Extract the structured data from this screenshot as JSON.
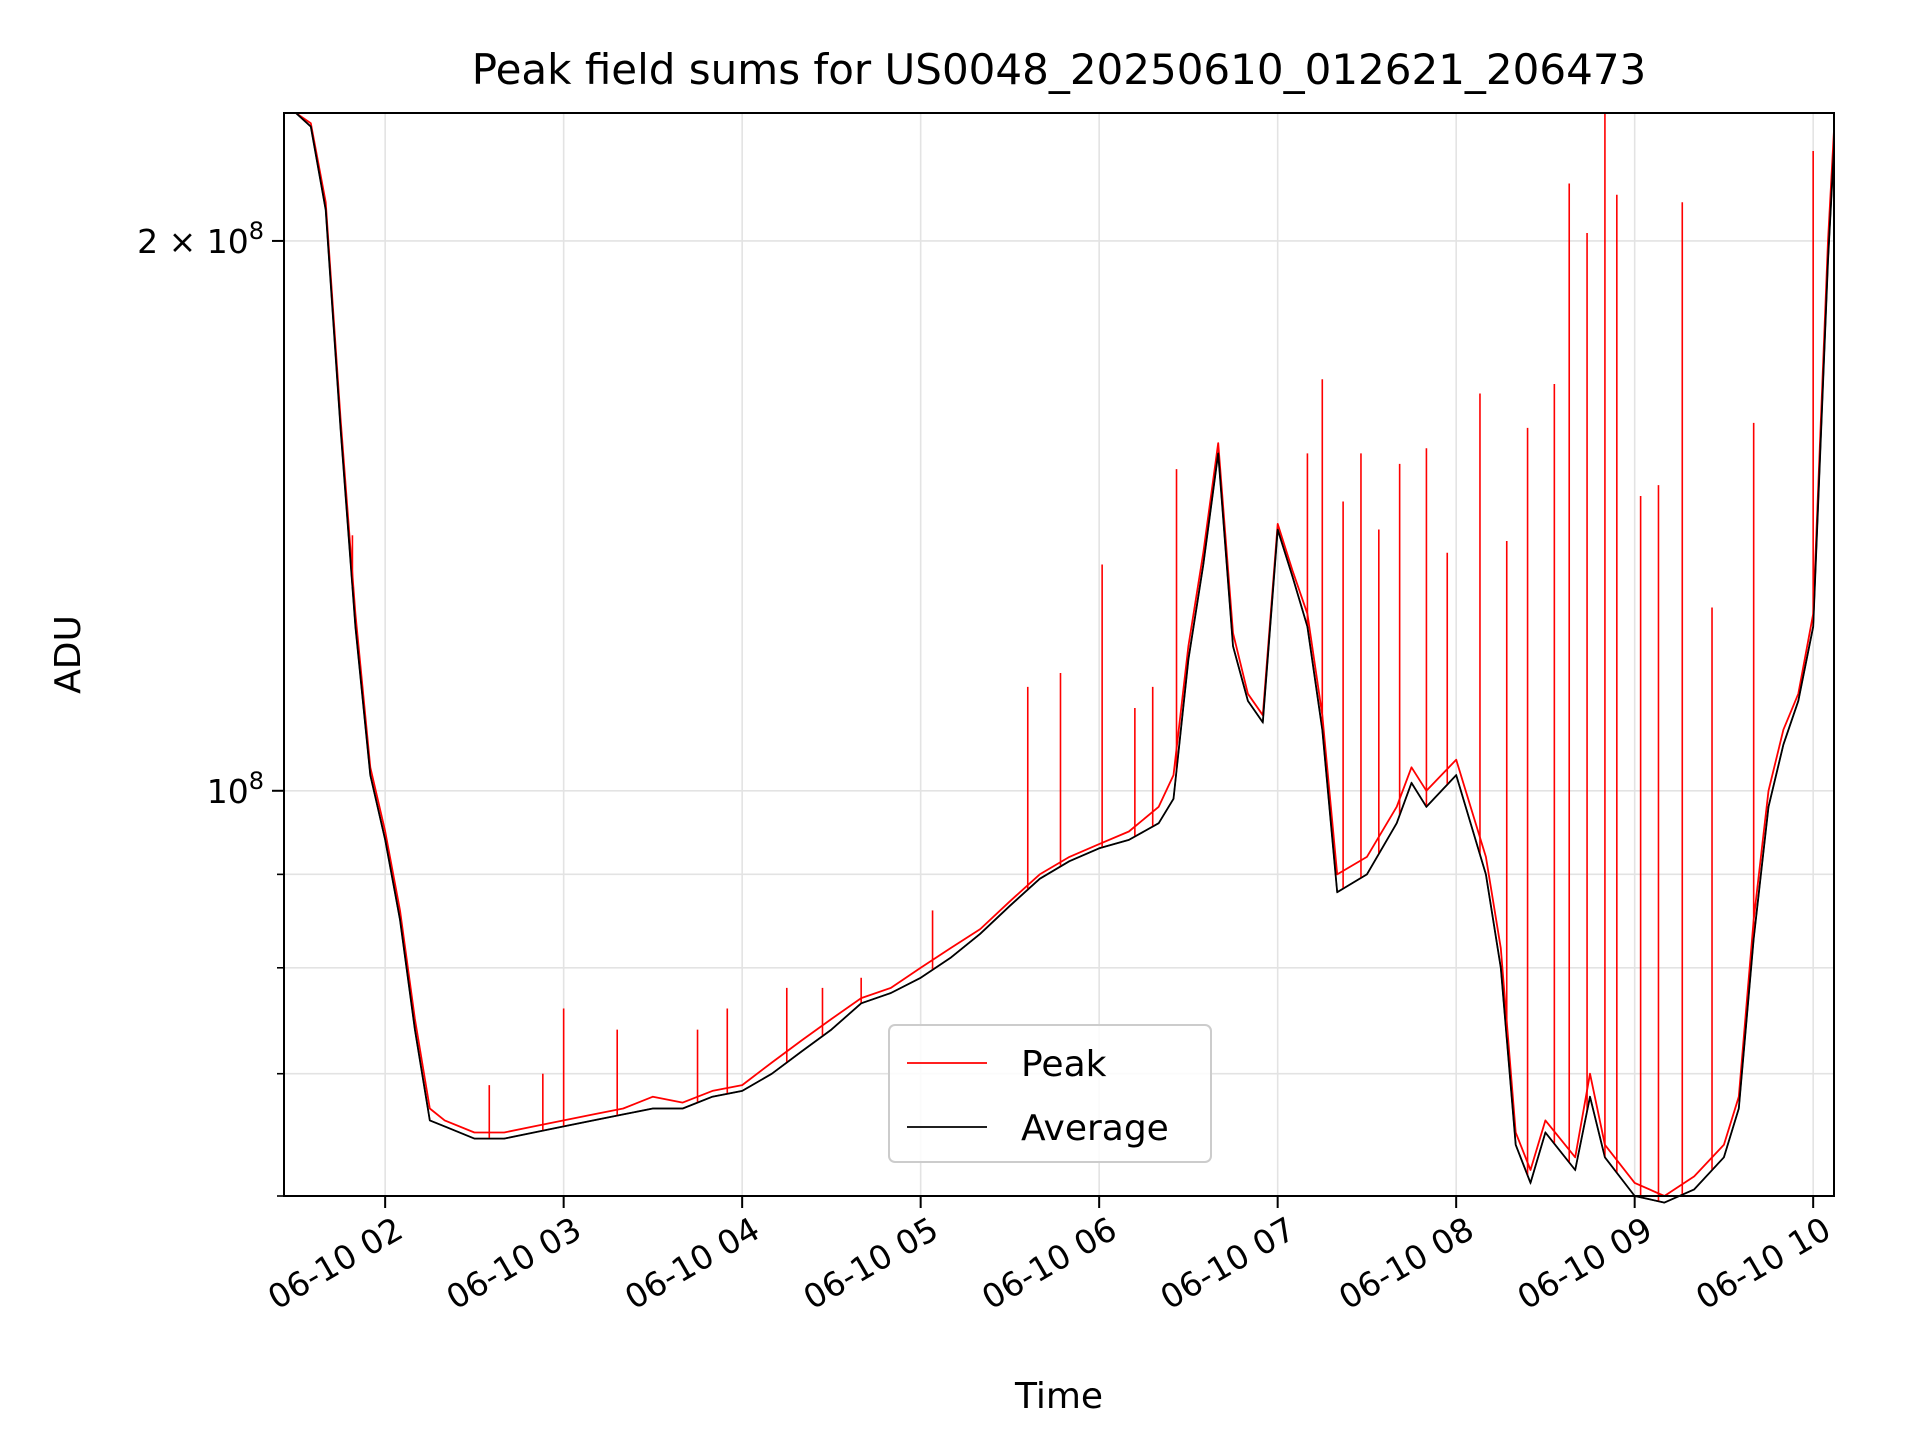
{
  "chart_data": {
    "type": "line",
    "title": "Peak field sums for US0048_20250610_012621_206473",
    "xlabel": "Time",
    "ylabel": "ADU",
    "y_scale": "log",
    "xlim": [
      "2025-06-10 01:26",
      "2025-06-10 10:07"
    ],
    "ylim": [
      60000000,
      235000000
    ],
    "grid": true,
    "legend_position": "lower-center",
    "x_ticks": [
      {
        "value": "2025-06-10 02:00",
        "label": "06-10 02"
      },
      {
        "value": "2025-06-10 03:00",
        "label": "06-10 03"
      },
      {
        "value": "2025-06-10 04:00",
        "label": "06-10 04"
      },
      {
        "value": "2025-06-10 05:00",
        "label": "06-10 05"
      },
      {
        "value": "2025-06-10 06:00",
        "label": "06-10 06"
      },
      {
        "value": "2025-06-10 07:00",
        "label": "06-10 07"
      },
      {
        "value": "2025-06-10 08:00",
        "label": "06-10 08"
      },
      {
        "value": "2025-06-10 09:00",
        "label": "06-10 09"
      },
      {
        "value": "2025-06-10 10:00",
        "label": "06-10 10"
      }
    ],
    "y_ticks": [
      {
        "value": 100000000,
        "label": "10",
        "exp": "8"
      },
      {
        "value": 200000000,
        "label": "2 × 10",
        "exp": "8"
      }
    ],
    "y_minor_ticks": [
      60000000,
      70000000,
      80000000,
      90000000
    ],
    "series": [
      {
        "name": "Peak",
        "color": "#ff0000",
        "x": [
          "2025-06-10 01:26",
          "2025-06-10 01:30",
          "2025-06-10 01:35",
          "2025-06-10 01:40",
          "2025-06-10 01:45",
          "2025-06-10 01:50",
          "2025-06-10 01:55",
          "2025-06-10 02:00",
          "2025-06-10 02:05",
          "2025-06-10 02:10",
          "2025-06-10 02:15",
          "2025-06-10 02:20",
          "2025-06-10 02:30",
          "2025-06-10 02:40",
          "2025-06-10 02:50",
          "2025-06-10 03:00",
          "2025-06-10 03:10",
          "2025-06-10 03:20",
          "2025-06-10 03:30",
          "2025-06-10 03:40",
          "2025-06-10 03:50",
          "2025-06-10 04:00",
          "2025-06-10 04:10",
          "2025-06-10 04:20",
          "2025-06-10 04:30",
          "2025-06-10 04:40",
          "2025-06-10 04:50",
          "2025-06-10 05:00",
          "2025-06-10 05:10",
          "2025-06-10 05:20",
          "2025-06-10 05:30",
          "2025-06-10 05:40",
          "2025-06-10 05:50",
          "2025-06-10 06:00",
          "2025-06-10 06:10",
          "2025-06-10 06:20",
          "2025-06-10 06:25",
          "2025-06-10 06:30",
          "2025-06-10 06:35",
          "2025-06-10 06:40",
          "2025-06-10 06:45",
          "2025-06-10 06:50",
          "2025-06-10 06:55",
          "2025-06-10 07:00",
          "2025-06-10 07:05",
          "2025-06-10 07:10",
          "2025-06-10 07:15",
          "2025-06-10 07:20",
          "2025-06-10 07:30",
          "2025-06-10 07:40",
          "2025-06-10 07:45",
          "2025-06-10 07:50",
          "2025-06-10 08:00",
          "2025-06-10 08:10",
          "2025-06-10 08:15",
          "2025-06-10 08:20",
          "2025-06-10 08:25",
          "2025-06-10 08:30",
          "2025-06-10 08:40",
          "2025-06-10 08:45",
          "2025-06-10 08:50",
          "2025-06-10 09:00",
          "2025-06-10 09:10",
          "2025-06-10 09:20",
          "2025-06-10 09:30",
          "2025-06-10 09:35",
          "2025-06-10 09:40",
          "2025-06-10 09:45",
          "2025-06-10 09:50",
          "2025-06-10 09:55",
          "2025-06-10 10:00",
          "2025-06-10 10:05",
          "2025-06-10 10:07"
        ],
        "y": [
          235000000,
          235000000,
          232000000,
          210000000,
          160000000,
          125000000,
          103000000,
          95000000,
          86000000,
          75000000,
          67000000,
          66000000,
          65000000,
          65000000,
          65500000,
          66000000,
          66500000,
          67000000,
          68000000,
          67500000,
          68500000,
          69000000,
          71000000,
          73000000,
          75000000,
          77000000,
          78000000,
          80000000,
          82000000,
          84000000,
          87000000,
          90000000,
          92000000,
          93500000,
          95000000,
          98000000,
          102000000,
          120000000,
          135000000,
          155000000,
          122000000,
          113000000,
          110000000,
          140000000,
          132000000,
          125000000,
          110000000,
          90000000,
          92000000,
          98000000,
          103000000,
          100000000,
          104000000,
          92000000,
          82000000,
          65000000,
          62000000,
          66000000,
          63000000,
          70000000,
          64000000,
          61000000,
          60000000,
          61500000,
          64000000,
          68000000,
          85000000,
          100000000,
          108000000,
          113000000,
          125000000,
          200000000,
          230000000
        ]
      },
      {
        "name": "Average",
        "color": "#000000",
        "x": [
          "2025-06-10 01:26",
          "2025-06-10 01:30",
          "2025-06-10 01:35",
          "2025-06-10 01:40",
          "2025-06-10 01:45",
          "2025-06-10 01:50",
          "2025-06-10 01:55",
          "2025-06-10 02:00",
          "2025-06-10 02:05",
          "2025-06-10 02:10",
          "2025-06-10 02:15",
          "2025-06-10 02:20",
          "2025-06-10 02:30",
          "2025-06-10 02:40",
          "2025-06-10 02:50",
          "2025-06-10 03:00",
          "2025-06-10 03:10",
          "2025-06-10 03:20",
          "2025-06-10 03:30",
          "2025-06-10 03:40",
          "2025-06-10 03:50",
          "2025-06-10 04:00",
          "2025-06-10 04:10",
          "2025-06-10 04:20",
          "2025-06-10 04:30",
          "2025-06-10 04:40",
          "2025-06-10 04:50",
          "2025-06-10 05:00",
          "2025-06-10 05:10",
          "2025-06-10 05:20",
          "2025-06-10 05:30",
          "2025-06-10 05:40",
          "2025-06-10 05:50",
          "2025-06-10 06:00",
          "2025-06-10 06:10",
          "2025-06-10 06:20",
          "2025-06-10 06:25",
          "2025-06-10 06:30",
          "2025-06-10 06:35",
          "2025-06-10 06:40",
          "2025-06-10 06:45",
          "2025-06-10 06:50",
          "2025-06-10 06:55",
          "2025-06-10 07:00",
          "2025-06-10 07:05",
          "2025-06-10 07:10",
          "2025-06-10 07:15",
          "2025-06-10 07:20",
          "2025-06-10 07:30",
          "2025-06-10 07:40",
          "2025-06-10 07:45",
          "2025-06-10 07:50",
          "2025-06-10 08:00",
          "2025-06-10 08:10",
          "2025-06-10 08:15",
          "2025-06-10 08:20",
          "2025-06-10 08:25",
          "2025-06-10 08:30",
          "2025-06-10 08:40",
          "2025-06-10 08:45",
          "2025-06-10 08:50",
          "2025-06-10 09:00",
          "2025-06-10 09:10",
          "2025-06-10 09:20",
          "2025-06-10 09:30",
          "2025-06-10 09:35",
          "2025-06-10 09:40",
          "2025-06-10 09:45",
          "2025-06-10 09:50",
          "2025-06-10 09:55",
          "2025-06-10 10:00",
          "2025-06-10 10:05",
          "2025-06-10 10:07"
        ],
        "y": [
          235000000,
          235000000,
          231000000,
          208000000,
          158000000,
          123000000,
          102000000,
          94000000,
          85000000,
          74000000,
          66000000,
          65500000,
          64500000,
          64500000,
          65000000,
          65500000,
          66000000,
          66500000,
          67000000,
          67000000,
          68000000,
          68500000,
          70000000,
          72000000,
          74000000,
          76500000,
          77500000,
          79000000,
          81000000,
          83500000,
          86500000,
          89500000,
          91500000,
          93000000,
          94000000,
          96000000,
          99000000,
          118000000,
          133000000,
          153000000,
          120000000,
          112000000,
          109000000,
          139000000,
          131000000,
          123000000,
          108000000,
          88000000,
          90000000,
          96000000,
          101000000,
          98000000,
          102000000,
          90000000,
          80000000,
          64000000,
          61000000,
          65000000,
          62000000,
          68000000,
          63000000,
          60000000,
          59500000,
          60500000,
          63000000,
          67000000,
          83000000,
          98000000,
          106000000,
          112000000,
          123000000,
          195000000,
          225000000
        ]
      }
    ],
    "spikes": {
      "color": "#ff0000",
      "x": [
        "2025-06-10 01:49",
        "2025-06-10 02:05",
        "2025-06-10 02:35",
        "2025-06-10 02:53",
        "2025-06-10 03:00",
        "2025-06-10 03:18",
        "2025-06-10 03:45",
        "2025-06-10 03:55",
        "2025-06-10 04:15",
        "2025-06-10 04:27",
        "2025-06-10 04:40",
        "2025-06-10 05:04",
        "2025-06-10 05:36",
        "2025-06-10 05:47",
        "2025-06-10 06:01",
        "2025-06-10 06:12",
        "2025-06-10 06:18",
        "2025-06-10 06:26",
        "2025-06-10 07:10",
        "2025-06-10 07:15",
        "2025-06-10 07:22",
        "2025-06-10 07:28",
        "2025-06-10 07:34",
        "2025-06-10 07:41",
        "2025-06-10 07:50",
        "2025-06-10 07:57",
        "2025-06-10 08:08",
        "2025-06-10 08:17",
        "2025-06-10 08:24",
        "2025-06-10 08:33",
        "2025-06-10 08:38",
        "2025-06-10 08:44",
        "2025-06-10 08:50",
        "2025-06-10 08:54",
        "2025-06-10 09:02",
        "2025-06-10 09:08",
        "2025-06-10 09:16",
        "2025-06-10 09:26",
        "2025-06-10 09:40",
        "2025-06-10 10:00"
      ],
      "y": [
        138000000,
        85000000,
        69000000,
        70000000,
        76000000,
        74000000,
        74000000,
        76000000,
        78000000,
        78000000,
        79000000,
        86000000,
        114000000,
        116000000,
        133000000,
        111000000,
        114000000,
        150000000,
        153000000,
        168000000,
        144000000,
        153000000,
        139000000,
        151000000,
        154000000,
        135000000,
        165000000,
        137000000,
        158000000,
        167000000,
        215000000,
        202000000,
        235000000,
        212000000,
        145000000,
        147000000,
        210000000,
        126000000,
        159000000,
        224000000
      ]
    }
  }
}
